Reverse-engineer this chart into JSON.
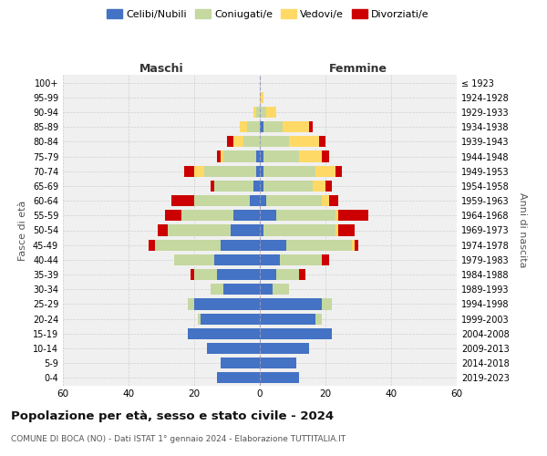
{
  "age_groups": [
    "0-4",
    "5-9",
    "10-14",
    "15-19",
    "20-24",
    "25-29",
    "30-34",
    "35-39",
    "40-44",
    "45-49",
    "50-54",
    "55-59",
    "60-64",
    "65-69",
    "70-74",
    "75-79",
    "80-84",
    "85-89",
    "90-94",
    "95-99",
    "100+"
  ],
  "birth_years": [
    "2019-2023",
    "2014-2018",
    "2009-2013",
    "2004-2008",
    "1999-2003",
    "1994-1998",
    "1989-1993",
    "1984-1988",
    "1979-1983",
    "1974-1978",
    "1969-1973",
    "1964-1968",
    "1959-1963",
    "1954-1958",
    "1949-1953",
    "1944-1948",
    "1939-1943",
    "1934-1938",
    "1929-1933",
    "1924-1928",
    "≤ 1923"
  ],
  "male": {
    "celibi": [
      13,
      12,
      16,
      22,
      18,
      20,
      11,
      13,
      14,
      12,
      9,
      8,
      3,
      2,
      1,
      1,
      0,
      0,
      0,
      0,
      0
    ],
    "coniugati": [
      0,
      0,
      0,
      0,
      1,
      2,
      4,
      7,
      12,
      20,
      19,
      16,
      17,
      12,
      16,
      10,
      5,
      4,
      1,
      0,
      0
    ],
    "vedovi": [
      0,
      0,
      0,
      0,
      0,
      0,
      0,
      0,
      0,
      0,
      0,
      0,
      0,
      0,
      3,
      1,
      3,
      2,
      1,
      0,
      0
    ],
    "divorziati": [
      0,
      0,
      0,
      0,
      0,
      0,
      0,
      1,
      0,
      2,
      3,
      5,
      7,
      1,
      3,
      1,
      2,
      0,
      0,
      0,
      0
    ]
  },
  "female": {
    "nubili": [
      12,
      11,
      15,
      22,
      17,
      19,
      4,
      5,
      6,
      8,
      1,
      5,
      2,
      1,
      1,
      1,
      0,
      1,
      0,
      0,
      0
    ],
    "coniugate": [
      0,
      0,
      0,
      0,
      2,
      3,
      5,
      7,
      13,
      20,
      22,
      18,
      17,
      15,
      16,
      11,
      9,
      6,
      2,
      0,
      0
    ],
    "vedove": [
      0,
      0,
      0,
      0,
      0,
      0,
      0,
      0,
      0,
      1,
      1,
      1,
      2,
      4,
      6,
      7,
      9,
      8,
      3,
      1,
      0
    ],
    "divorziate": [
      0,
      0,
      0,
      0,
      0,
      0,
      0,
      2,
      2,
      1,
      5,
      9,
      3,
      2,
      2,
      2,
      2,
      1,
      0,
      0,
      0
    ]
  },
  "colors": {
    "celibi": "#4472c4",
    "coniugati": "#c5d8a0",
    "vedovi": "#ffd966",
    "divorziati": "#cc0000"
  },
  "title": "Popolazione per età, sesso e stato civile - 2024",
  "subtitle": "COMUNE DI BOCA (NO) - Dati ISTAT 1° gennaio 2024 - Elaborazione TUTTITALIA.IT",
  "xlabel_left": "Maschi",
  "xlabel_right": "Femmine",
  "ylabel_left": "Fasce di età",
  "ylabel_right": "Anni di nascita",
  "xlim": 60,
  "bg_color": "#f0f0f0",
  "grid_color": "#cccccc"
}
